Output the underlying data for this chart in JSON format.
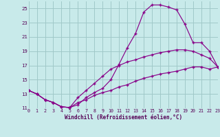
{
  "xlabel": "Windchill (Refroidissement éolien,°C)",
  "bg_color": "#c8eaea",
  "grid_color": "#a0c8c8",
  "line_color": "#880088",
  "xlim": [
    0,
    23
  ],
  "ylim": [
    11,
    26
  ],
  "xticks": [
    0,
    1,
    2,
    3,
    4,
    5,
    6,
    7,
    8,
    9,
    10,
    11,
    12,
    13,
    14,
    15,
    16,
    17,
    18,
    19,
    20,
    21,
    22,
    23
  ],
  "yticks": [
    11,
    13,
    15,
    17,
    19,
    21,
    23,
    25
  ],
  "line1_x": [
    0,
    1,
    2,
    3,
    4,
    5,
    6,
    7,
    8,
    9,
    10,
    11,
    12,
    13,
    14,
    15,
    16,
    17,
    18,
    19,
    20,
    21,
    22,
    23
  ],
  "line1_y": [
    13.5,
    13.0,
    12.2,
    11.8,
    11.2,
    11.1,
    11.5,
    12.5,
    13.2,
    13.8,
    15.0,
    17.2,
    19.5,
    21.5,
    24.5,
    25.5,
    25.5,
    25.2,
    24.8,
    22.8,
    20.2,
    20.2,
    19.0,
    16.8
  ],
  "line2_x": [
    0,
    1,
    2,
    3,
    4,
    5,
    6,
    7,
    8,
    9,
    10,
    11,
    12,
    13,
    14,
    15,
    16,
    17,
    18,
    19,
    20,
    21,
    22,
    23
  ],
  "line2_y": [
    13.5,
    13.0,
    12.2,
    11.8,
    11.2,
    11.1,
    12.5,
    13.5,
    14.5,
    15.5,
    16.5,
    17.0,
    17.5,
    17.8,
    18.2,
    18.5,
    18.8,
    19.0,
    19.2,
    19.2,
    19.0,
    18.5,
    18.0,
    16.8
  ],
  "line3_x": [
    0,
    1,
    2,
    3,
    4,
    5,
    6,
    7,
    8,
    9,
    10,
    11,
    12,
    13,
    14,
    15,
    16,
    17,
    18,
    19,
    20,
    21,
    22,
    23
  ],
  "line3_y": [
    13.5,
    13.0,
    12.2,
    11.8,
    11.2,
    11.1,
    11.8,
    12.2,
    12.8,
    13.2,
    13.5,
    14.0,
    14.3,
    14.8,
    15.2,
    15.5,
    15.8,
    16.0,
    16.2,
    16.5,
    16.8,
    16.8,
    16.5,
    16.8
  ],
  "tick_fontsize": 5.5,
  "label_fontsize": 5.5
}
